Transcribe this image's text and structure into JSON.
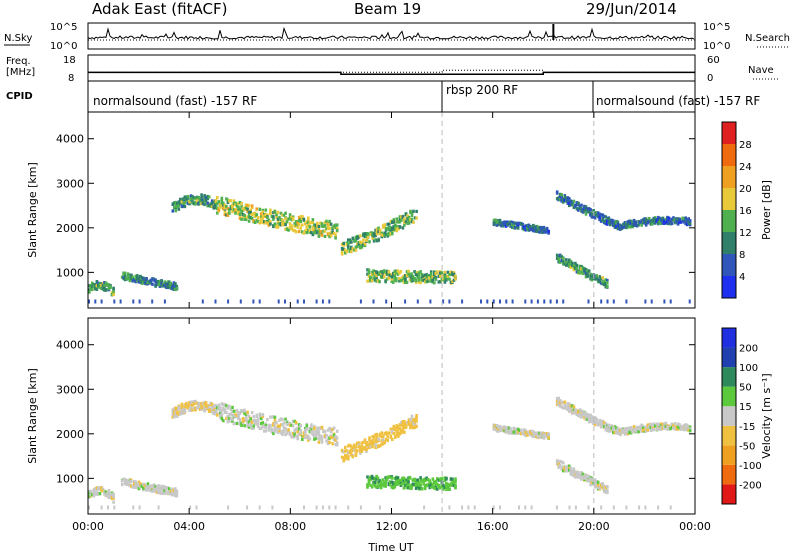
{
  "header": {
    "radar": "Adak East (fitACF)",
    "beam": "Beam 19",
    "date": "29/Jun/2014"
  },
  "status_panels": {
    "noise": {
      "left_label": "N.Sky",
      "right_label": "N.Search",
      "left_ticks": [
        "10^5",
        "10^0"
      ],
      "right_ticks": [
        "10^5",
        "10^0"
      ]
    },
    "freq": {
      "left_label_line1": "Freq.",
      "left_label_line2": "[MHz]",
      "right_label": "Nave",
      "left_ticks": [
        "18",
        "8"
      ],
      "right_ticks": [
        "60",
        "0"
      ],
      "freq_steps": [
        {
          "start_hr": 0,
          "end_hr": 10,
          "mhz": 11.3
        },
        {
          "start_hr": 10,
          "end_hr": 18,
          "mhz": 10.4
        },
        {
          "start_hr": 18,
          "end_hr": 24,
          "mhz": 11.3
        }
      ],
      "nave_steps": [
        {
          "start_hr": 0,
          "end_hr": 14,
          "nave": 17
        },
        {
          "start_hr": 14,
          "end_hr": 18,
          "nave": 22
        },
        {
          "start_hr": 18,
          "end_hr": 24,
          "nave": 17
        }
      ]
    },
    "cpid": {
      "label": "CPID",
      "segments": [
        {
          "text": "normalsound (fast) -157 RF",
          "start_hr": 0
        },
        {
          "text": "rbsp 200 RF",
          "start_hr": 14
        },
        {
          "text": "normalsound (fast) -157 RF",
          "start_hr": 20
        }
      ]
    }
  },
  "chart_data": [
    {
      "type": "heatmap",
      "quantity": "power",
      "ylabel": "Slant Range [km]",
      "xlim": [
        0,
        24
      ],
      "ylim": [
        200,
        4600
      ],
      "yticks": [
        1000,
        2000,
        3000,
        4000
      ],
      "colorbar": {
        "label": "Power [dB]",
        "ticks": [
          "4",
          "8",
          "12",
          "16",
          "20",
          "24",
          "28"
        ],
        "colors": [
          "#1f2ff0",
          "#2f56b8",
          "#2f7f6a",
          "#4fb04f",
          "#e8c93a",
          "#f0a020",
          "#f06a10",
          "#e02020"
        ]
      },
      "echo_bands": [
        {
          "t0": 0.0,
          "t1": 1.0,
          "r0": 600,
          "r1": 800,
          "r2": 500,
          "width": 180,
          "level": 12
        },
        {
          "t0": 1.3,
          "t1": 3.5,
          "r0": 900,
          "r1": 750,
          "r2": 650,
          "width": 160,
          "level": 10
        },
        {
          "t0": 3.3,
          "t1": 5.0,
          "r0": 2400,
          "r1": 2750,
          "r2": 2500,
          "width": 220,
          "level": 12
        },
        {
          "t0": 5.0,
          "t1": 9.8,
          "r0": 2500,
          "r1": 2100,
          "r2": 1900,
          "width": 380,
          "level": 16
        },
        {
          "t0": 10.0,
          "t1": 13.0,
          "r0": 1500,
          "r1": 1800,
          "r2": 2300,
          "width": 300,
          "level": 14
        },
        {
          "t0": 11.0,
          "t1": 14.5,
          "r0": 900,
          "r1": 850,
          "r2": 850,
          "width": 260,
          "level": 14
        },
        {
          "t0": 16.0,
          "t1": 18.2,
          "r0": 2100,
          "r1": 2000,
          "r2": 1900,
          "width": 130,
          "level": 8
        },
        {
          "t0": 18.5,
          "t1": 21.0,
          "r0": 2700,
          "r1": 2300,
          "r2": 2000,
          "width": 170,
          "level": 8
        },
        {
          "t0": 21.0,
          "t1": 23.8,
          "r0": 2000,
          "r1": 2200,
          "r2": 2100,
          "width": 150,
          "level": 8
        },
        {
          "t0": 18.5,
          "t1": 20.5,
          "r0": 1300,
          "r1": 1000,
          "r2": 700,
          "width": 180,
          "level": 12
        }
      ],
      "separators_hr": [
        14,
        20
      ]
    },
    {
      "type": "heatmap",
      "quantity": "velocity",
      "ylabel": "Slant Range [km]",
      "xlabel": "Time UT",
      "xlim": [
        0,
        24
      ],
      "ylim": [
        200,
        4600
      ],
      "yticks": [
        1000,
        2000,
        3000,
        4000
      ],
      "xticks": [
        "00:00",
        "04:00",
        "08:00",
        "12:00",
        "16:00",
        "20:00",
        "00:00"
      ],
      "colorbar": {
        "label": "Velocity [m s⁻¹]",
        "ticks": [
          "-200",
          "-100",
          "-50",
          "-15",
          "15",
          "50",
          "100",
          "200"
        ],
        "colors": [
          "#e01818",
          "#f06a10",
          "#f0a020",
          "#f0c040",
          "#c8c8c8",
          "#5cc83c",
          "#2e8a5c",
          "#2040b0",
          "#2030e0"
        ]
      },
      "echo_bands": [
        {
          "t0": 0.0,
          "t1": 1.0,
          "r0": 600,
          "r1": 800,
          "r2": 500,
          "width": 180,
          "level": 0
        },
        {
          "t0": 1.3,
          "t1": 3.5,
          "r0": 900,
          "r1": 750,
          "r2": 650,
          "width": 160,
          "level": 0
        },
        {
          "t0": 3.3,
          "t1": 5.0,
          "r0": 2400,
          "r1": 2750,
          "r2": 2500,
          "width": 220,
          "level": -15
        },
        {
          "t0": 5.0,
          "t1": 9.8,
          "r0": 2500,
          "r1": 2100,
          "r2": 1900,
          "width": 380,
          "level": 0
        },
        {
          "t0": 10.0,
          "t1": 13.0,
          "r0": 1500,
          "r1": 1800,
          "r2": 2300,
          "width": 300,
          "level": -30
        },
        {
          "t0": 11.0,
          "t1": 14.5,
          "r0": 900,
          "r1": 850,
          "r2": 850,
          "width": 260,
          "level": 40
        },
        {
          "t0": 16.0,
          "t1": 18.2,
          "r0": 2100,
          "r1": 2000,
          "r2": 1900,
          "width": 130,
          "level": 0
        },
        {
          "t0": 18.5,
          "t1": 21.0,
          "r0": 2700,
          "r1": 2300,
          "r2": 2000,
          "width": 170,
          "level": 0
        },
        {
          "t0": 21.0,
          "t1": 23.8,
          "r0": 2000,
          "r1": 2200,
          "r2": 2100,
          "width": 150,
          "level": 0
        },
        {
          "t0": 18.5,
          "t1": 20.5,
          "r0": 1300,
          "r1": 1000,
          "r2": 700,
          "width": 180,
          "level": 0
        }
      ],
      "separators_hr": [
        14,
        20
      ]
    }
  ]
}
